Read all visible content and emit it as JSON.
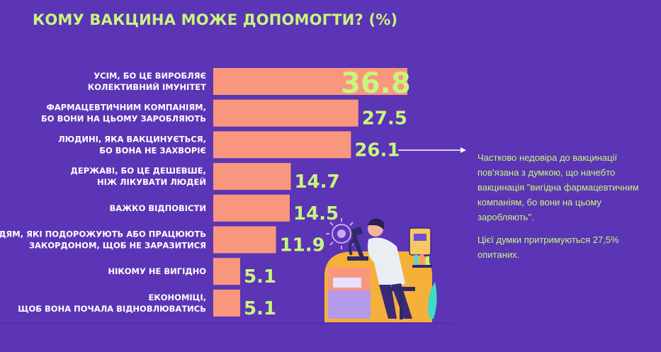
{
  "title": "КОМУ ВАКЦИНА МОЖЕ ДОПОМОГТИ? (%)",
  "annotation": {
    "paragraph1": "Частково недовіра до вакцинації пов'язана з думкою, що начебто вакцинація \"вигідна фармацевтичним компаніям, бо вони на цьому заробляють\".",
    "paragraph2": "Цієї думки притримуються 27,5% опитаних."
  },
  "colors": {
    "background": "#5b35b5",
    "bar": "#f9977e",
    "value_text": "#c8f57e",
    "highlight_value": "#3de2ee",
    "label_text": "#ffffff"
  },
  "chart_data": {
    "type": "bar",
    "orientation": "horizontal",
    "title": "КОМУ ВАКЦИНА МОЖЕ ДОПОМОГТИ? (%)",
    "categories": [
      [
        "УСІМ, БО ЦЕ ВИРОБЛЯЄ",
        "КОЛЕКТИВНИЙ ІМУНІТЕТ"
      ],
      [
        "ФАРМАЦЕВТИЧНИМ КОМПАНІЯМ,",
        "БО ВОНИ НА ЦЬОМУ ЗАРОБЛЯЮТЬ"
      ],
      [
        "ЛЮДИНІ, ЯКА ВАКЦИНУЄТЬСЯ,",
        "БО ВОНА НЕ ЗАХВОРІЄ"
      ],
      [
        "ДЕРЖАВІ, БО ЦЕ ДЕШЕВШЕ,",
        "НІЖ ЛІКУВАТИ ЛЮДЕЙ"
      ],
      [
        "ВАЖКО ВІДПОВІСТИ"
      ],
      [
        "ЛЮДЯМ, ЯКІ ПОДОРОЖУЮТЬ АБО ПРАЦЮЮТЬ",
        "ЗАКОРДОНОМ, ЩОБ НЕ ЗАРАЗИТИСЯ"
      ],
      [
        "НІКОМУ НЕ ВИГІДНО"
      ],
      [
        "ЕКОНОМІЦІ,",
        "ЩОБ ВОНА ПОЧАЛА ВІДНОВЛЮВАТИСЬ"
      ]
    ],
    "values": [
      36.8,
      27.5,
      26.1,
      14.7,
      14.5,
      11.9,
      5.1,
      5.1
    ],
    "value_labels": [
      "36.8",
      "27.5",
      "26.1",
      "14.7",
      "14.5",
      "11.9",
      "5.1",
      "5.1"
    ],
    "highlight_index": 0,
    "xlim": [
      0,
      36.8
    ]
  }
}
